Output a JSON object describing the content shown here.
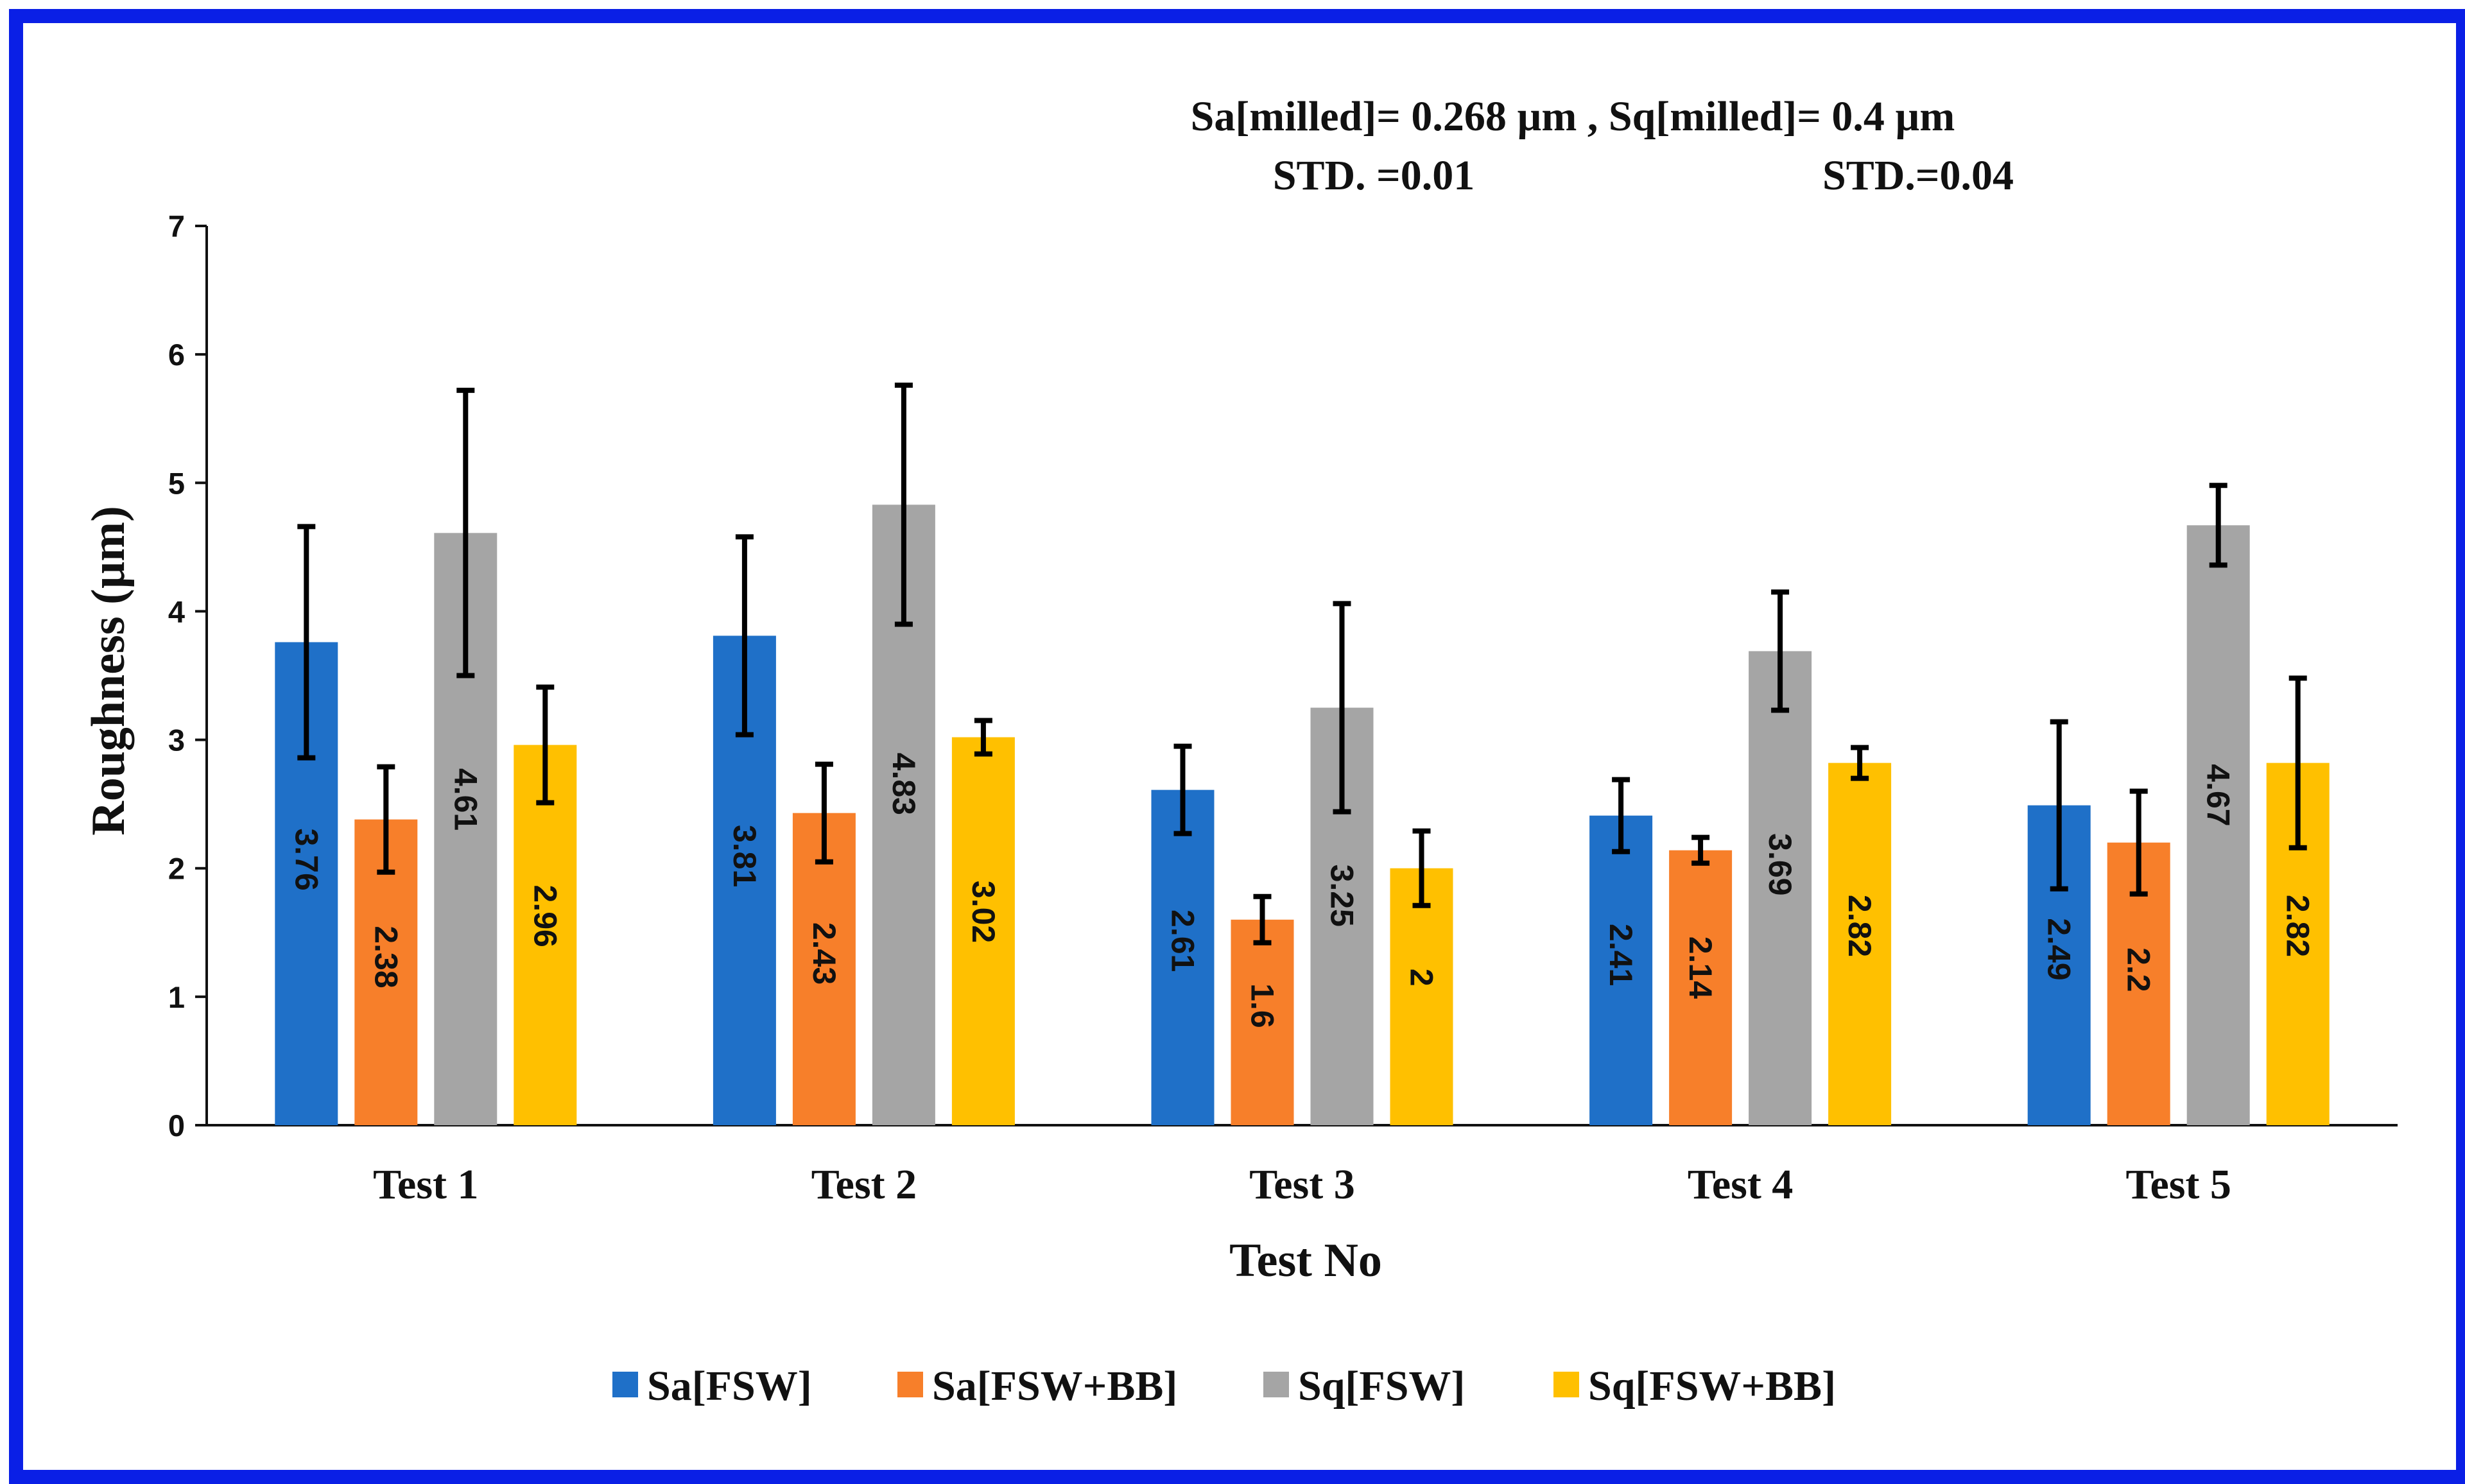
{
  "chart_data": {
    "type": "bar",
    "xlabel": "Test No",
    "ylabel": "Roughness (µm)",
    "ylim": [
      0,
      7
    ],
    "yticks": [
      0,
      1,
      2,
      3,
      4,
      5,
      6,
      7
    ],
    "grid": false,
    "legend_position": "bottom",
    "categories": [
      "Test 1",
      "Test 2",
      "Test 3",
      "Test 4",
      "Test 5"
    ],
    "series": [
      {
        "name": "Sa[FSW]",
        "color": "#1f70c8",
        "values": [
          3.76,
          3.81,
          2.61,
          2.41,
          2.49
        ],
        "error": [
          0.9,
          0.77,
          0.34,
          0.28,
          0.65
        ],
        "labels": [
          "3.76",
          "3.81",
          "2.61",
          "2.41",
          "2.49"
        ]
      },
      {
        "name": "Sa[FSW+BB]",
        "color": "#f77f2a",
        "values": [
          2.38,
          2.43,
          1.6,
          2.14,
          2.2
        ],
        "error": [
          0.41,
          0.38,
          0.18,
          0.1,
          0.4
        ],
        "labels": [
          "2.38",
          "2.43",
          "1.6",
          "2.14",
          "2.2"
        ]
      },
      {
        "name": "Sq[FSW]",
        "color": "#a5a5a5",
        "values": [
          4.61,
          4.83,
          3.25,
          3.69,
          4.67
        ],
        "error": [
          1.11,
          0.93,
          0.81,
          0.46,
          0.31
        ],
        "labels": [
          "4.61",
          "4.83",
          "3.25",
          "3.69",
          "4.67"
        ]
      },
      {
        "name": "Sq[FSW+BB]",
        "color": "#ffc000",
        "values": [
          2.96,
          3.02,
          2.0,
          2.82,
          2.82
        ],
        "error": [
          0.45,
          0.13,
          0.29,
          0.12,
          0.66
        ],
        "labels": [
          "2.96",
          "3.02",
          "2",
          "2.82",
          "2.82"
        ]
      }
    ],
    "annotations": {
      "line1": "Sa[milled]= 0.268 µm , Sq[milled]= 0.4 µm",
      "std_sa": "STD. =0.01",
      "std_sq": "STD.=0.04"
    }
  },
  "colors": {
    "frame": "#0a1fe6",
    "axis": "#111111",
    "error_bar": "#000000"
  }
}
